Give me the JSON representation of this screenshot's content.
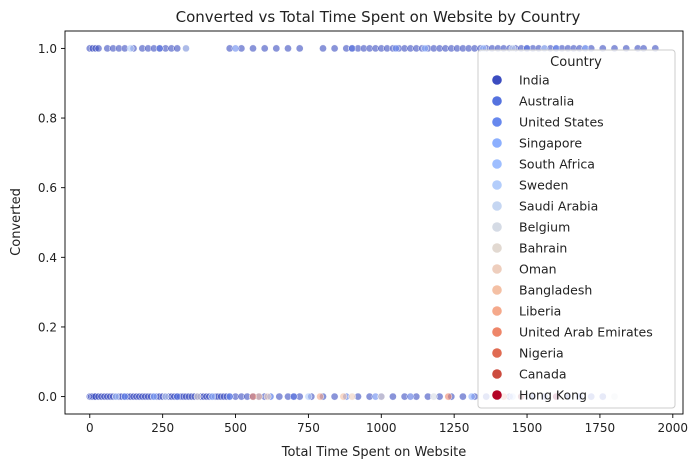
{
  "chart_data": {
    "type": "scatter",
    "title": "Converted vs Total Time Spent on Website by Country",
    "xlabel": "Total Time Spent on Website",
    "ylabel": "Converted",
    "xlim": [
      -85,
      2035
    ],
    "ylim": [
      -0.05,
      1.05
    ],
    "xticks": [
      0,
      250,
      500,
      750,
      1000,
      1250,
      1500,
      1750,
      2000
    ],
    "xtick_labels": [
      "0",
      "250",
      "500",
      "750",
      "1000",
      "1250",
      "1500",
      "1750",
      "2000"
    ],
    "yticks": [
      0.0,
      0.2,
      0.4,
      0.6,
      0.8,
      1.0
    ],
    "ytick_labels": [
      "0.0",
      "0.2",
      "0.4",
      "0.6",
      "0.8",
      "1.0"
    ],
    "grid": false,
    "legend": {
      "title": "Country",
      "placement": "upper-right"
    },
    "series": [
      {
        "name": "India",
        "color": "#3b4cc0",
        "x0": [
          0,
          5,
          10,
          15,
          20,
          30,
          40,
          50,
          60,
          70,
          80,
          90,
          100,
          110,
          120,
          130,
          140,
          150,
          160,
          170,
          180,
          190,
          200,
          210,
          220,
          230,
          240,
          250,
          260,
          270,
          280,
          290,
          300,
          310,
          320,
          330,
          340,
          350,
          360,
          370,
          380,
          390,
          400,
          410,
          420,
          430,
          440,
          450,
          460,
          470,
          480,
          500,
          520,
          540,
          560,
          580,
          600,
          620,
          650,
          680,
          700,
          720,
          760,
          800,
          840,
          880,
          920,
          960,
          1000,
          1040,
          1080,
          1120,
          1160,
          1200,
          1240,
          1280,
          1320,
          1360,
          1400,
          1440,
          1480,
          1520,
          1560,
          1600,
          1640,
          1680,
          1720,
          1760
        ],
        "x1": [
          0,
          10,
          20,
          30,
          60,
          80,
          100,
          120,
          150,
          180,
          200,
          220,
          240,
          260,
          280,
          300,
          330,
          480,
          520,
          560,
          600,
          640,
          680,
          720,
          800,
          840,
          880,
          900,
          920,
          940,
          960,
          980,
          1000,
          1020,
          1040,
          1060,
          1080,
          1100,
          1120,
          1140,
          1160,
          1180,
          1200,
          1220,
          1240,
          1260,
          1280,
          1300,
          1320,
          1340,
          1360,
          1380,
          1400,
          1420,
          1440,
          1460,
          1480,
          1500,
          1520,
          1540,
          1560,
          1580,
          1600,
          1620,
          1640,
          1660,
          1680,
          1700,
          1720,
          1760,
          1800,
          1840,
          1880,
          1900,
          1940
        ]
      },
      {
        "name": "Australia",
        "color": "#5572df",
        "x0": [
          300,
          700,
          1100
        ],
        "x1": [
          240,
          900,
          1500
        ]
      },
      {
        "name": "United States",
        "color": "#6788ee",
        "x0": [
          120,
          480,
          980
        ],
        "x1": [
          500,
          1050,
          1600
        ]
      },
      {
        "name": "Singapore",
        "color": "#8caffe",
        "x0": [
          220,
          620,
          1310
        ],
        "x1": [
          1150,
          1700
        ]
      },
      {
        "name": "South Africa",
        "color": "#9ebeff",
        "x0": [
          420,
          880
        ],
        "x1": [
          1350
        ]
      },
      {
        "name": "Sweden",
        "color": "#b3cdfb",
        "x0": [
          90,
          750,
          1450
        ],
        "x1": [
          140,
          1560
        ]
      },
      {
        "name": "Saudi Arabia",
        "color": "#c5d6f2",
        "x0": [
          260,
          1500
        ],
        "x1": [
          330,
          1450
        ]
      },
      {
        "name": "Belgium",
        "color": "#d5dbe5",
        "x0": [
          1180,
          1800
        ],
        "x1": []
      },
      {
        "name": "Bahrain",
        "color": "#e2d9d1",
        "x0": [
          370,
          1000
        ],
        "x1": []
      },
      {
        "name": "Oman",
        "color": "#eecebd",
        "x0": [
          610,
          900
        ],
        "x1": []
      },
      {
        "name": "Bangladesh",
        "color": "#f4c0a4",
        "x0": [
          580,
          870
        ],
        "x1": []
      },
      {
        "name": "Liberia",
        "color": "#f5a98b",
        "x0": [
          790
        ],
        "x1": []
      },
      {
        "name": "United Arab Emirates",
        "color": "#ee8669",
        "x0": [
          560,
          1230
        ],
        "x1": []
      },
      {
        "name": "Nigeria",
        "color": "#e06b52",
        "x0": [
          1420
        ],
        "x1": []
      },
      {
        "name": "Canada",
        "color": "#cc4c3f",
        "x0": [
          1480
        ],
        "x1": []
      },
      {
        "name": "Hong Kong",
        "color": "#b40426",
        "x0": [
          1600
        ],
        "x1": []
      }
    ]
  }
}
